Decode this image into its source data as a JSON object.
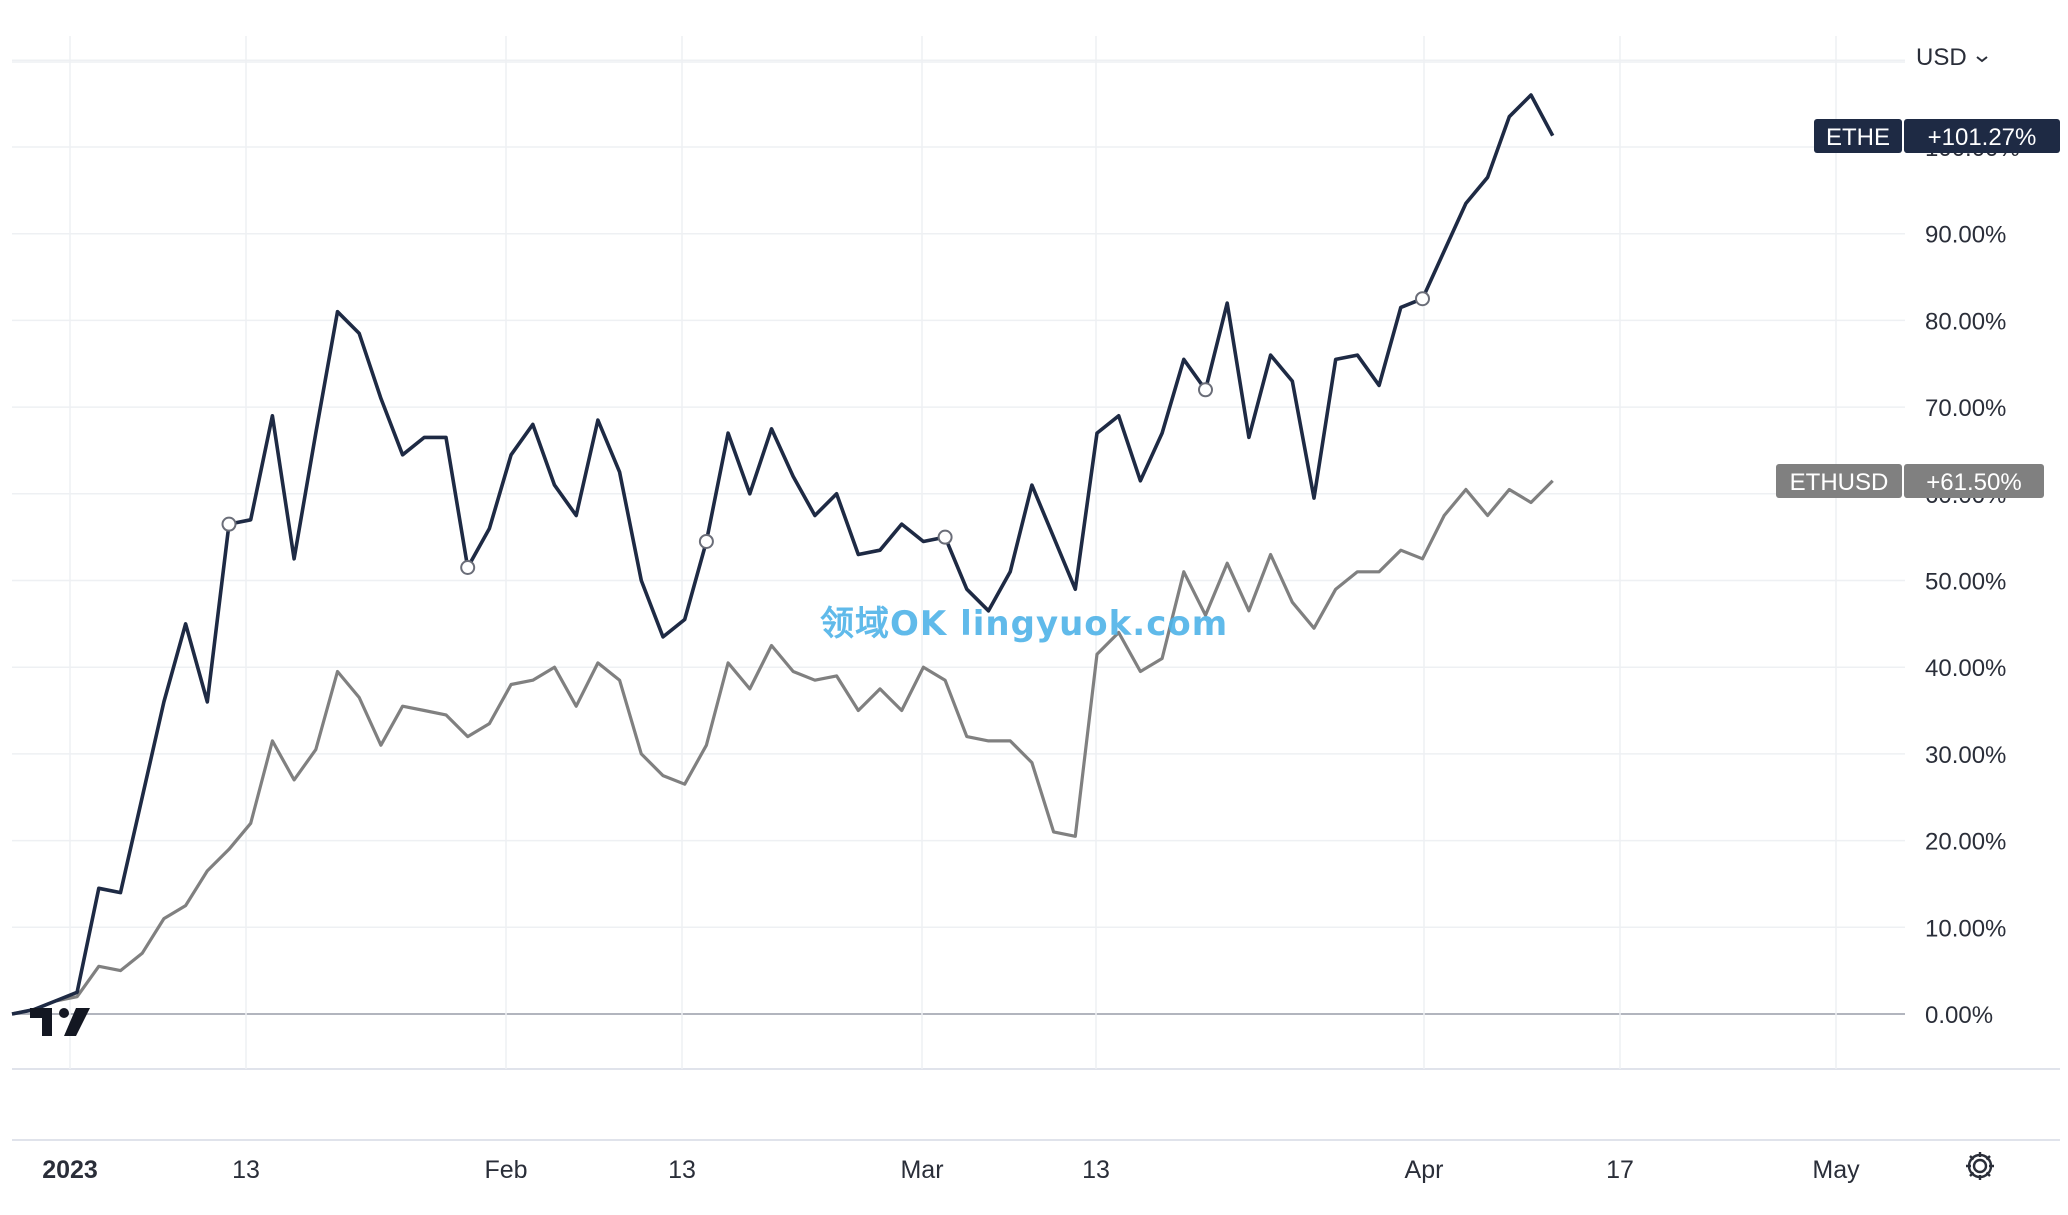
{
  "currency": {
    "label": "USD",
    "icon": "chevron-down-icon"
  },
  "watermark": "领域OK lingyuok.com",
  "colors": {
    "ethe": "#1e2a44",
    "ethusd": "#808080",
    "grid": "#eef0f3",
    "zero": "#b2b5be"
  },
  "chart_data": {
    "type": "line",
    "x_tick_labels": [
      "2023",
      "13",
      "Feb",
      "13",
      "Mar",
      "13",
      "Apr",
      "17",
      "May"
    ],
    "y_tick_labels": [
      "0.00%",
      "10.00%",
      "20.00%",
      "30.00%",
      "40.00%",
      "50.00%",
      "60.00%",
      "70.00%",
      "80.00%",
      "90.00%",
      "100.00%"
    ],
    "ylim": [
      -6,
      110
    ],
    "series": [
      {
        "name": "ETHE",
        "badge": "+101.27%",
        "color": "#1e2a44",
        "values": [
          0,
          0.5,
          1.5,
          2.5,
          14.5,
          14,
          25,
          36,
          45,
          36,
          56.5,
          57,
          69,
          52.5,
          67,
          81,
          78.5,
          71,
          64.5,
          66.5,
          66.5,
          51.5,
          56,
          64.5,
          68,
          61,
          57.5,
          68.5,
          62.5,
          50,
          43.5,
          45.5,
          54.5,
          67,
          60,
          67.5,
          62,
          57.5,
          60,
          53,
          53.5,
          56.5,
          54.5,
          55,
          49,
          46.5,
          51,
          61,
          55,
          49,
          67,
          69,
          61.5,
          67,
          75.5,
          72,
          82,
          66.5,
          76,
          73,
          59.5,
          75.5,
          76,
          72.5,
          81.5,
          82.5,
          88,
          93.5,
          96.5,
          103.5,
          106,
          101.3
        ],
        "markers": [
          10,
          21,
          32,
          43,
          55,
          65
        ]
      },
      {
        "name": "ETHUSD",
        "badge": "+61.50%",
        "color": "#808080",
        "values": [
          0,
          0.5,
          1.5,
          2,
          5.5,
          5,
          7,
          11,
          12.5,
          16.5,
          19,
          22,
          31.5,
          27,
          30.5,
          39.5,
          36.5,
          31,
          35.5,
          35,
          34.5,
          32,
          33.5,
          38,
          38.5,
          40,
          35.5,
          40.5,
          38.5,
          30,
          27.5,
          26.5,
          31,
          40.5,
          37.5,
          42.5,
          39.5,
          38.5,
          39,
          35,
          37.5,
          35,
          40,
          38.5,
          32,
          31.5,
          31.5,
          29,
          21,
          20.5,
          41.5,
          44,
          39.5,
          41,
          51,
          46,
          52,
          46.5,
          53,
          47.5,
          44.5,
          49,
          51,
          51,
          53.5,
          52.5,
          57.5,
          60.5,
          57.5,
          60.5,
          59,
          61.5
        ]
      }
    ],
    "grid": true,
    "legend": "right-axis badges"
  }
}
